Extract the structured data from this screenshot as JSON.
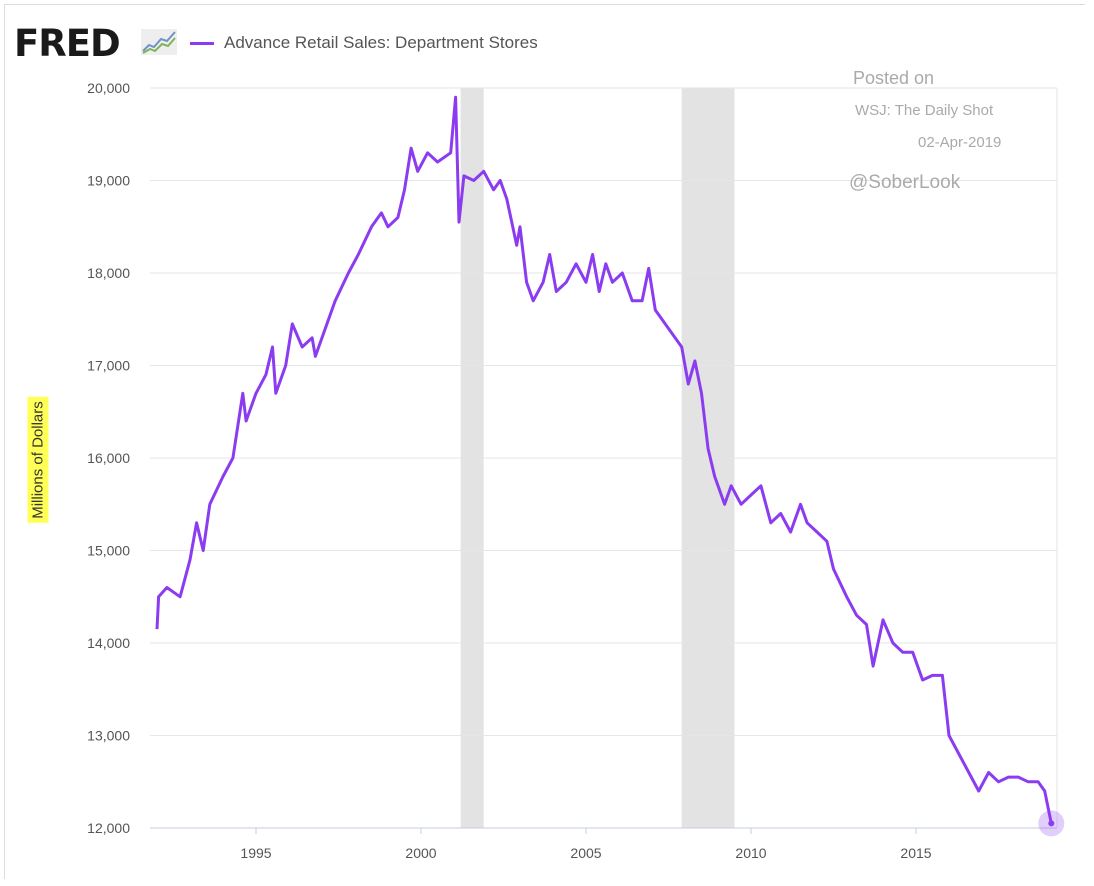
{
  "header": {
    "logo": "FRED",
    "series_name": "Advance Retail Sales: Department Stores"
  },
  "annotation": {
    "posted": "Posted on",
    "source": "WSJ: The Daily Shot",
    "date": "02-Apr-2019",
    "handle": "@SoberLook"
  },
  "colors": {
    "line": "#8c3cf0",
    "recession": "#e3e3e3",
    "grid": "#e6e6e6"
  },
  "chart_data": {
    "type": "line",
    "title": "Advance Retail Sales: Department Stores",
    "xlabel": "",
    "ylabel": "Millions of Dollars",
    "xlim": [
      1992,
      2019.2
    ],
    "ylim": [
      12000,
      20000
    ],
    "yticks": [
      12000,
      13000,
      14000,
      15000,
      16000,
      17000,
      18000,
      19000,
      20000
    ],
    "ytick_labels": [
      "12,000",
      "13,000",
      "14,000",
      "15,000",
      "16,000",
      "17,000",
      "18,000",
      "19,000",
      "20,000"
    ],
    "xticks": [
      1995,
      2000,
      2005,
      2010,
      2015
    ],
    "xtick_labels": [
      "1995",
      "2000",
      "2005",
      "2010",
      "2015"
    ],
    "grid": true,
    "recessions": [
      [
        2001.2,
        2001.9
      ],
      [
        2007.9,
        2009.5
      ]
    ],
    "series": [
      {
        "name": "Advance Retail Sales: Department Stores",
        "x": [
          1992.0,
          1992.05,
          1992.3,
          1992.7,
          1993.0,
          1993.2,
          1993.4,
          1993.6,
          1994.0,
          1994.3,
          1994.6,
          1994.7,
          1995.0,
          1995.3,
          1995.5,
          1995.6,
          1995.9,
          1996.1,
          1996.4,
          1996.7,
          1996.8,
          1997.1,
          1997.4,
          1997.8,
          1998.1,
          1998.5,
          1998.8,
          1999.0,
          1999.3,
          1999.5,
          1999.7,
          1999.9,
          2000.2,
          2000.5,
          2000.9,
          2001.05,
          2001.15,
          2001.3,
          2001.6,
          2001.9,
          2002.2,
          2002.4,
          2002.6,
          2002.9,
          2003.0,
          2003.2,
          2003.4,
          2003.7,
          2003.9,
          2004.1,
          2004.4,
          2004.7,
          2005.0,
          2005.2,
          2005.4,
          2005.6,
          2005.8,
          2006.1,
          2006.4,
          2006.7,
          2006.9,
          2007.1,
          2007.4,
          2007.7,
          2007.9,
          2008.1,
          2008.3,
          2008.5,
          2008.7,
          2008.9,
          2009.2,
          2009.4,
          2009.7,
          2010.0,
          2010.3,
          2010.6,
          2010.9,
          2011.2,
          2011.5,
          2011.7,
          2012.0,
          2012.3,
          2012.5,
          2012.9,
          2013.2,
          2013.5,
          2013.7,
          2014.0,
          2014.3,
          2014.6,
          2014.9,
          2015.2,
          2015.5,
          2015.8,
          2016.0,
          2016.3,
          2016.6,
          2016.9,
          2017.2,
          2017.5,
          2017.8,
          2018.1,
          2018.4,
          2018.7,
          2018.9,
          2019.1
        ],
        "values": [
          14150,
          14500,
          14600,
          14500,
          14900,
          15300,
          15000,
          15500,
          15800,
          16000,
          16700,
          16400,
          16700,
          16900,
          17200,
          16700,
          17000,
          17450,
          17200,
          17300,
          17100,
          17400,
          17700,
          18000,
          18200,
          18500,
          18650,
          18500,
          18600,
          18900,
          19350,
          19100,
          19300,
          19200,
          19300,
          19900,
          18550,
          19050,
          19000,
          19100,
          18900,
          19000,
          18800,
          18300,
          18500,
          17900,
          17700,
          17900,
          18200,
          17800,
          17900,
          18100,
          17900,
          18200,
          17800,
          18100,
          17900,
          18000,
          17700,
          17700,
          18050,
          17600,
          17450,
          17300,
          17200,
          16800,
          17050,
          16700,
          16100,
          15800,
          15500,
          15700,
          15500,
          15600,
          15700,
          15300,
          15400,
          15200,
          15500,
          15300,
          15200,
          15100,
          14800,
          14500,
          14300,
          14200,
          13750,
          14250,
          14000,
          13900,
          13900,
          13600,
          13650,
          13650,
          13000,
          12800,
          12600,
          12400,
          12600,
          12500,
          12550,
          12550,
          12500,
          12500,
          12400,
          12050
        ]
      }
    ]
  }
}
